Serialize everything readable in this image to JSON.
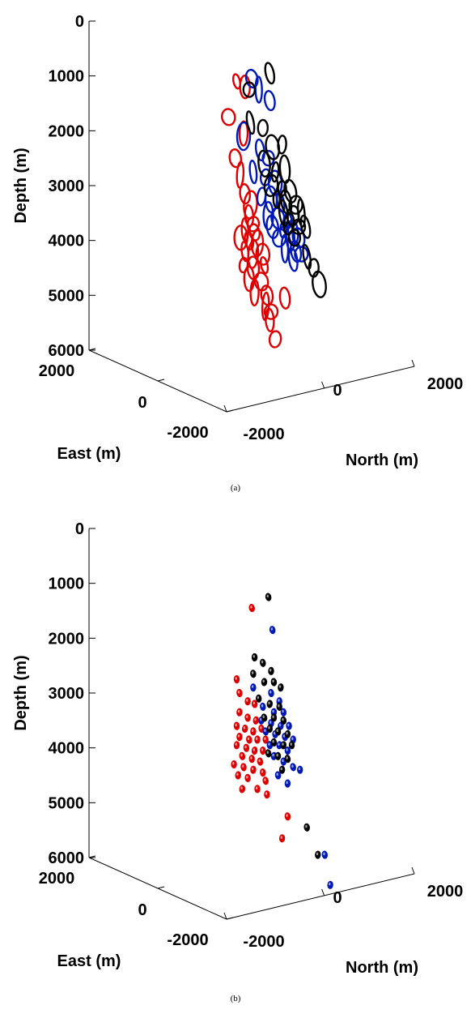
{
  "chart_data": [
    {
      "type": "scatter",
      "panel_label": "(a)",
      "axes": {
        "depth": {
          "label": "Depth (m)",
          "ticks": [
            0,
            1000,
            2000,
            3000,
            4000,
            5000,
            6000
          ],
          "range": [
            0,
            6000
          ]
        },
        "east": {
          "label": "East (m)",
          "ticks": [
            2000,
            0,
            -2000
          ]
        },
        "north": {
          "label": "North (m)",
          "ticks": [
            -2000,
            0,
            2000
          ]
        }
      },
      "series": [
        {
          "color": "#dd0000",
          "points": [
            [
              -300,
              1100
            ],
            [
              -180,
              1200
            ],
            [
              -420,
              1750
            ],
            [
              -200,
              2050
            ],
            [
              -320,
              2500
            ],
            [
              -250,
              2800
            ],
            [
              -180,
              3150
            ],
            [
              -100,
              3350
            ],
            [
              -120,
              3550
            ],
            [
              -60,
              3700
            ],
            [
              -180,
              3800
            ],
            [
              -40,
              3850
            ],
            [
              -240,
              3950
            ],
            [
              -120,
              4000
            ],
            [
              0,
              4050
            ],
            [
              -180,
              4200
            ],
            [
              -60,
              4250
            ],
            [
              80,
              4250
            ],
            [
              -200,
              4450
            ],
            [
              -60,
              4500
            ],
            [
              100,
              4450
            ],
            [
              -120,
              4700
            ],
            [
              60,
              4750
            ],
            [
              -40,
              4950
            ],
            [
              140,
              5000
            ],
            [
              120,
              5200
            ],
            [
              400,
              5050
            ],
            [
              200,
              5300
            ],
            [
              180,
              5450
            ],
            [
              260,
              5800
            ]
          ]
        },
        {
          "color": "#0018b4",
          "points": [
            [
              -80,
              1050
            ],
            [
              20,
              1250
            ],
            [
              180,
              1450
            ],
            [
              -200,
              2100
            ],
            [
              40,
              2350
            ],
            [
              160,
              2500
            ],
            [
              -60,
              2750
            ],
            [
              120,
              2850
            ],
            [
              260,
              2950
            ],
            [
              60,
              3200
            ],
            [
              200,
              3250
            ],
            [
              340,
              3300
            ],
            [
              160,
              3550
            ],
            [
              300,
              3600
            ],
            [
              440,
              3650
            ],
            [
              220,
              3750
            ],
            [
              380,
              3800
            ],
            [
              520,
              3850
            ],
            [
              320,
              3950
            ],
            [
              480,
              3950
            ],
            [
              600,
              3950
            ],
            [
              400,
              4150
            ],
            [
              560,
              4200
            ],
            [
              640,
              4250
            ],
            [
              520,
              4350
            ]
          ]
        },
        {
          "color": "#000000",
          "points": [
            [
              180,
              950
            ],
            [
              -120,
              1250
            ],
            [
              -100,
              1850
            ],
            [
              80,
              1950
            ],
            [
              220,
              2300
            ],
            [
              360,
              2250
            ],
            [
              100,
              2600
            ],
            [
              260,
              2750
            ],
            [
              400,
              2700
            ],
            [
              200,
              3000
            ],
            [
              360,
              3050
            ],
            [
              480,
              3100
            ],
            [
              280,
              3250
            ],
            [
              420,
              3300
            ],
            [
              560,
              3350
            ],
            [
              380,
              3500
            ],
            [
              520,
              3550
            ],
            [
              640,
              3500
            ],
            [
              460,
              3700
            ],
            [
              600,
              3750
            ],
            [
              700,
              3750
            ],
            [
              540,
              3950
            ],
            [
              720,
              4300
            ],
            [
              820,
              4500
            ],
            [
              900,
              4800
            ]
          ]
        }
      ]
    },
    {
      "type": "scatter",
      "panel_label": "(b)",
      "axes": {
        "depth": {
          "label": "Depth (m)",
          "ticks": [
            0,
            1000,
            2000,
            3000,
            4000,
            5000,
            6000
          ],
          "range": [
            0,
            6000
          ]
        },
        "east": {
          "label": "East (m)",
          "ticks": [
            2000,
            0,
            -2000
          ]
        },
        "north": {
          "label": "North (m)",
          "ticks": [
            -2000,
            0,
            2000
          ]
        }
      },
      "series": [
        {
          "color": "#dd0000",
          "points": [
            [
              -80,
              1450
            ],
            [
              -300,
              2750
            ],
            [
              -260,
              3000
            ],
            [
              -140,
              3150
            ],
            [
              -40,
              3200
            ],
            [
              -260,
              3350
            ],
            [
              -140,
              3450
            ],
            [
              -20,
              3500
            ],
            [
              -300,
              3600
            ],
            [
              -180,
              3650
            ],
            [
              -60,
              3700
            ],
            [
              60,
              3650
            ],
            [
              -260,
              3800
            ],
            [
              -120,
              3850
            ],
            [
              0,
              3850
            ],
            [
              120,
              3850
            ],
            [
              -300,
              3950
            ],
            [
              -160,
              4000
            ],
            [
              -40,
              4050
            ],
            [
              80,
              4050
            ],
            [
              -220,
              4150
            ],
            [
              -80,
              4200
            ],
            [
              40,
              4250
            ],
            [
              -340,
              4300
            ],
            [
              -200,
              4350
            ],
            [
              -60,
              4400
            ],
            [
              80,
              4450
            ],
            [
              -280,
              4500
            ],
            [
              -140,
              4550
            ],
            [
              -220,
              4750
            ],
            [
              0,
              4750
            ],
            [
              120,
              4600
            ],
            [
              140,
              4850
            ],
            [
              440,
              5250
            ],
            [
              360,
              5650
            ]
          ]
        },
        {
          "color": "#0018b4",
          "points": [
            [
              220,
              1850
            ],
            [
              -60,
              2900
            ],
            [
              200,
              3000
            ],
            [
              320,
              3150
            ],
            [
              80,
              3250
            ],
            [
              240,
              3350
            ],
            [
              380,
              3350
            ],
            [
              60,
              3500
            ],
            [
              200,
              3550
            ],
            [
              340,
              3600
            ],
            [
              460,
              3600
            ],
            [
              120,
              3700
            ],
            [
              260,
              3750
            ],
            [
              400,
              3800
            ],
            [
              520,
              3850
            ],
            [
              180,
              3950
            ],
            [
              320,
              3950
            ],
            [
              440,
              4050
            ],
            [
              240,
              4150
            ],
            [
              380,
              4250
            ],
            [
              520,
              4350
            ],
            [
              620,
              4400
            ],
            [
              300,
              4500
            ],
            [
              440,
              4650
            ],
            [
              980,
              5950
            ],
            [
              1060,
              6500
            ]
          ]
        },
        {
          "color": "#000000",
          "points": [
            [
              160,
              1250
            ],
            [
              -40,
              2350
            ],
            [
              80,
              2450
            ],
            [
              200,
              2600
            ],
            [
              -60,
              2650
            ],
            [
              100,
              2800
            ],
            [
              240,
              2800
            ],
            [
              340,
              2900
            ],
            [
              20,
              3100
            ],
            [
              180,
              3200
            ],
            [
              320,
              3250
            ],
            [
              100,
              3450
            ],
            [
              240,
              3450
            ],
            [
              380,
              3500
            ],
            [
              180,
              3650
            ],
            [
              300,
              3700
            ],
            [
              440,
              3750
            ],
            [
              240,
              3900
            ],
            [
              380,
              3950
            ],
            [
              500,
              3950
            ],
            [
              160,
              4100
            ],
            [
              300,
              4150
            ],
            [
              440,
              4200
            ],
            [
              360,
              4400
            ],
            [
              720,
              5450
            ],
            [
              880,
              5950
            ]
          ]
        }
      ]
    }
  ]
}
